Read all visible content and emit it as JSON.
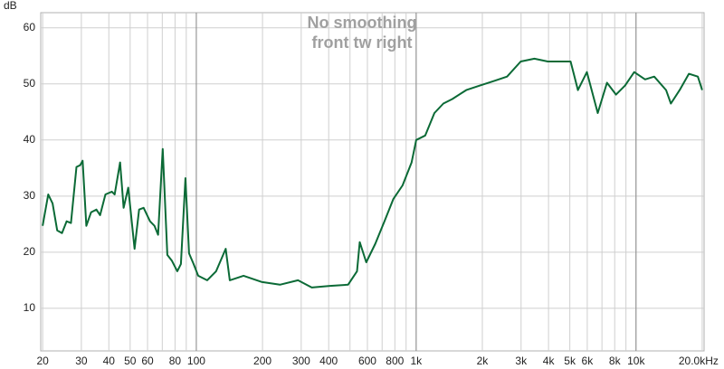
{
  "chart_data": {
    "type": "line",
    "title": [
      "No smoothing",
      "front tw right"
    ],
    "y_label": "dB",
    "xscale": "log",
    "xlim": [
      19.6,
      20400
    ],
    "ylim": [
      2.4,
      62.7
    ],
    "yticks": [
      10,
      20,
      30,
      40,
      50,
      60
    ],
    "xticks": [
      20,
      30,
      40,
      50,
      60,
      80,
      100,
      200,
      300,
      400,
      600,
      800,
      {
        "value": 1000,
        "label": "1k"
      },
      {
        "value": 2000,
        "label": "2k"
      },
      {
        "value": 3000,
        "label": "3k"
      },
      {
        "value": 4000,
        "label": "4k"
      },
      {
        "value": 5000,
        "label": "5k"
      },
      {
        "value": 6000,
        "label": "6k"
      },
      {
        "value": 8000,
        "label": "8k"
      },
      {
        "value": 10000,
        "label": "10k"
      },
      {
        "value": 20000,
        "label": "20.0kHz"
      }
    ],
    "xgrid_minor": [
      70,
      90,
      500,
      700,
      900,
      7000,
      9000
    ],
    "xgrid_major": [
      100,
      1000,
      10000
    ],
    "grid": true,
    "series": [
      {
        "name": "front tw right",
        "color": "#0b6a36",
        "x": [
          20,
          21.2,
          22.2,
          23.3,
          24.5,
          25.7,
          26.9,
          28.5,
          29.6,
          30.4,
          31.6,
          33.2,
          35.1,
          36.5,
          38.6,
          41.3,
          42.5,
          45,
          46.7,
          49,
          52.4,
          54.9,
          57.6,
          61.6,
          64.5,
          67,
          70.3,
          73.8,
          77.3,
          81.9,
          85.1,
          89.2,
          92.7,
          97.2,
          102,
          112,
          123,
          136,
          142,
          164,
          198,
          240,
          290,
          335,
          405,
          490,
          538,
          554,
          593,
          652,
          717,
          788,
          867,
          953,
          1000,
          1100,
          1210,
          1330,
          1460,
          1690,
          1950,
          2250,
          2590,
          2990,
          3450,
          3970,
          4580,
          5040,
          5440,
          5980,
          6700,
          7380,
          8110,
          8920,
          9810,
          11000,
          12100,
          13700,
          14400,
          15800,
          17400,
          19100,
          20000
        ],
        "values": [
          24.7,
          30.3,
          28.7,
          23.9,
          23.4,
          25.5,
          25.2,
          35.2,
          35.5,
          36.3,
          24.7,
          27.1,
          27.6,
          26.6,
          30.3,
          30.8,
          30.3,
          36,
          27.9,
          31.5,
          20.6,
          27.6,
          27.9,
          25.5,
          24.7,
          23.1,
          38.4,
          19.5,
          18.5,
          16.6,
          17.9,
          33.2,
          19.8,
          17.9,
          15.8,
          15,
          16.6,
          20.6,
          15,
          15.8,
          14.7,
          14.2,
          15,
          13.7,
          14,
          14.2,
          16.6,
          21.8,
          18.2,
          21.5,
          25.5,
          29.5,
          31.9,
          36,
          40,
          40.8,
          44.8,
          46.5,
          47.3,
          48.9,
          49.7,
          50.5,
          51.3,
          54,
          54.5,
          54,
          54,
          54,
          48.9,
          52.1,
          44.8,
          50.2,
          48.1,
          49.7,
          52.1,
          50.8,
          51.3,
          48.9,
          46.5,
          48.9,
          51.8,
          51.3,
          48.9
        ]
      }
    ]
  }
}
